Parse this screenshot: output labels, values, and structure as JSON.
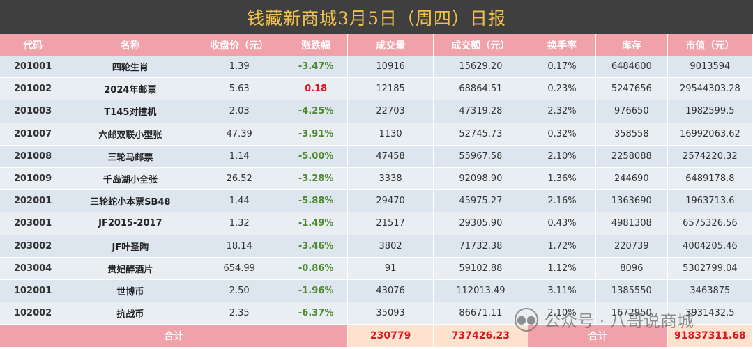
{
  "title": "钱藏新商城3月5日（周四）日报",
  "columns": [
    "代码",
    "名称",
    "收盘价（元）",
    "涨跌幅",
    "成交量",
    "成交额（元）",
    "换手率",
    "库存",
    "市值（元）"
  ],
  "rows": [
    {
      "code": "201001",
      "name": "四轮生肖",
      "close": "1.39",
      "change": "-3.47%",
      "volume": "10916",
      "amount": "15629.20",
      "turnover": "0.17%",
      "stock": "6484600",
      "mcap": "9013594"
    },
    {
      "code": "201002",
      "name": "2024年邮票",
      "close": "5.63",
      "change": "0.18",
      "volume": "12185",
      "amount": "68864.51",
      "turnover": "0.23%",
      "stock": "5247656",
      "mcap": "29544303.28"
    },
    {
      "code": "201003",
      "name": "T145对撞机",
      "close": "2.03",
      "change": "-4.25%",
      "volume": "22703",
      "amount": "47319.28",
      "turnover": "2.32%",
      "stock": "976650",
      "mcap": "1982599.5"
    },
    {
      "code": "201007",
      "name": "六邮双联小型张",
      "close": "47.39",
      "change": "-3.91%",
      "volume": "1130",
      "amount": "52745.73",
      "turnover": "0.32%",
      "stock": "358558",
      "mcap": "16992063.62"
    },
    {
      "code": "201008",
      "name": "三轮马邮票",
      "close": "1.14",
      "change": "-5.00%",
      "volume": "47458",
      "amount": "55967.58",
      "turnover": "2.10%",
      "stock": "2258088",
      "mcap": "2574220.32"
    },
    {
      "code": "201009",
      "name": "千岛湖小全张",
      "close": "26.52",
      "change": "-3.28%",
      "volume": "3338",
      "amount": "92098.90",
      "turnover": "1.36%",
      "stock": "244690",
      "mcap": "6489178.8"
    },
    {
      "code": "202001",
      "name": "三轮蛇小本票SB48",
      "close": "1.44",
      "change": "-5.88%",
      "volume": "29470",
      "amount": "45975.27",
      "turnover": "2.16%",
      "stock": "1363690",
      "mcap": "1963713.6"
    },
    {
      "code": "203001",
      "name": "JF2015-2017",
      "close": "1.32",
      "change": "-1.49%",
      "volume": "21517",
      "amount": "29305.90",
      "turnover": "0.43%",
      "stock": "4981308",
      "mcap": "6575326.56"
    },
    {
      "code": "203002",
      "name": "JF叶圣陶",
      "close": "18.14",
      "change": "-3.46%",
      "volume": "3802",
      "amount": "71732.38",
      "turnover": "1.72%",
      "stock": "220739",
      "mcap": "4004205.46"
    },
    {
      "code": "203004",
      "name": "贵妃醉酒片",
      "close": "654.99",
      "change": "-0.86%",
      "volume": "91",
      "amount": "59102.88",
      "turnover": "1.12%",
      "stock": "8096",
      "mcap": "5302799.04"
    },
    {
      "code": "102001",
      "name": "世博币",
      "close": "2.50",
      "change": "-1.96%",
      "volume": "43076",
      "amount": "112013.49",
      "turnover": "3.11%",
      "stock": "1385550",
      "mcap": "3463875"
    },
    {
      "code": "102002",
      "name": "抗战币",
      "close": "2.35",
      "change": "-6.37%",
      "volume": "35093",
      "amount": "86671.11",
      "turnover": "2.10%",
      "stock": "1672950",
      "mcap": "3931432.5"
    }
  ],
  "totals": {
    "label_left": "合计",
    "volume": "230779",
    "amount": "737426.23",
    "label_right": "合计",
    "mcap": "91837311.68"
  },
  "watermark": {
    "icon": "wechat-icon",
    "text": "公众号 · 八哥说商城"
  },
  "colors": {
    "title_bg": "#3f3f3f",
    "title_text": "#f1c24a",
    "header_bg": "#f0a1aa",
    "negative": "#4e8a2e",
    "positive": "#e0151e",
    "total_bg": "#fde3cf"
  }
}
